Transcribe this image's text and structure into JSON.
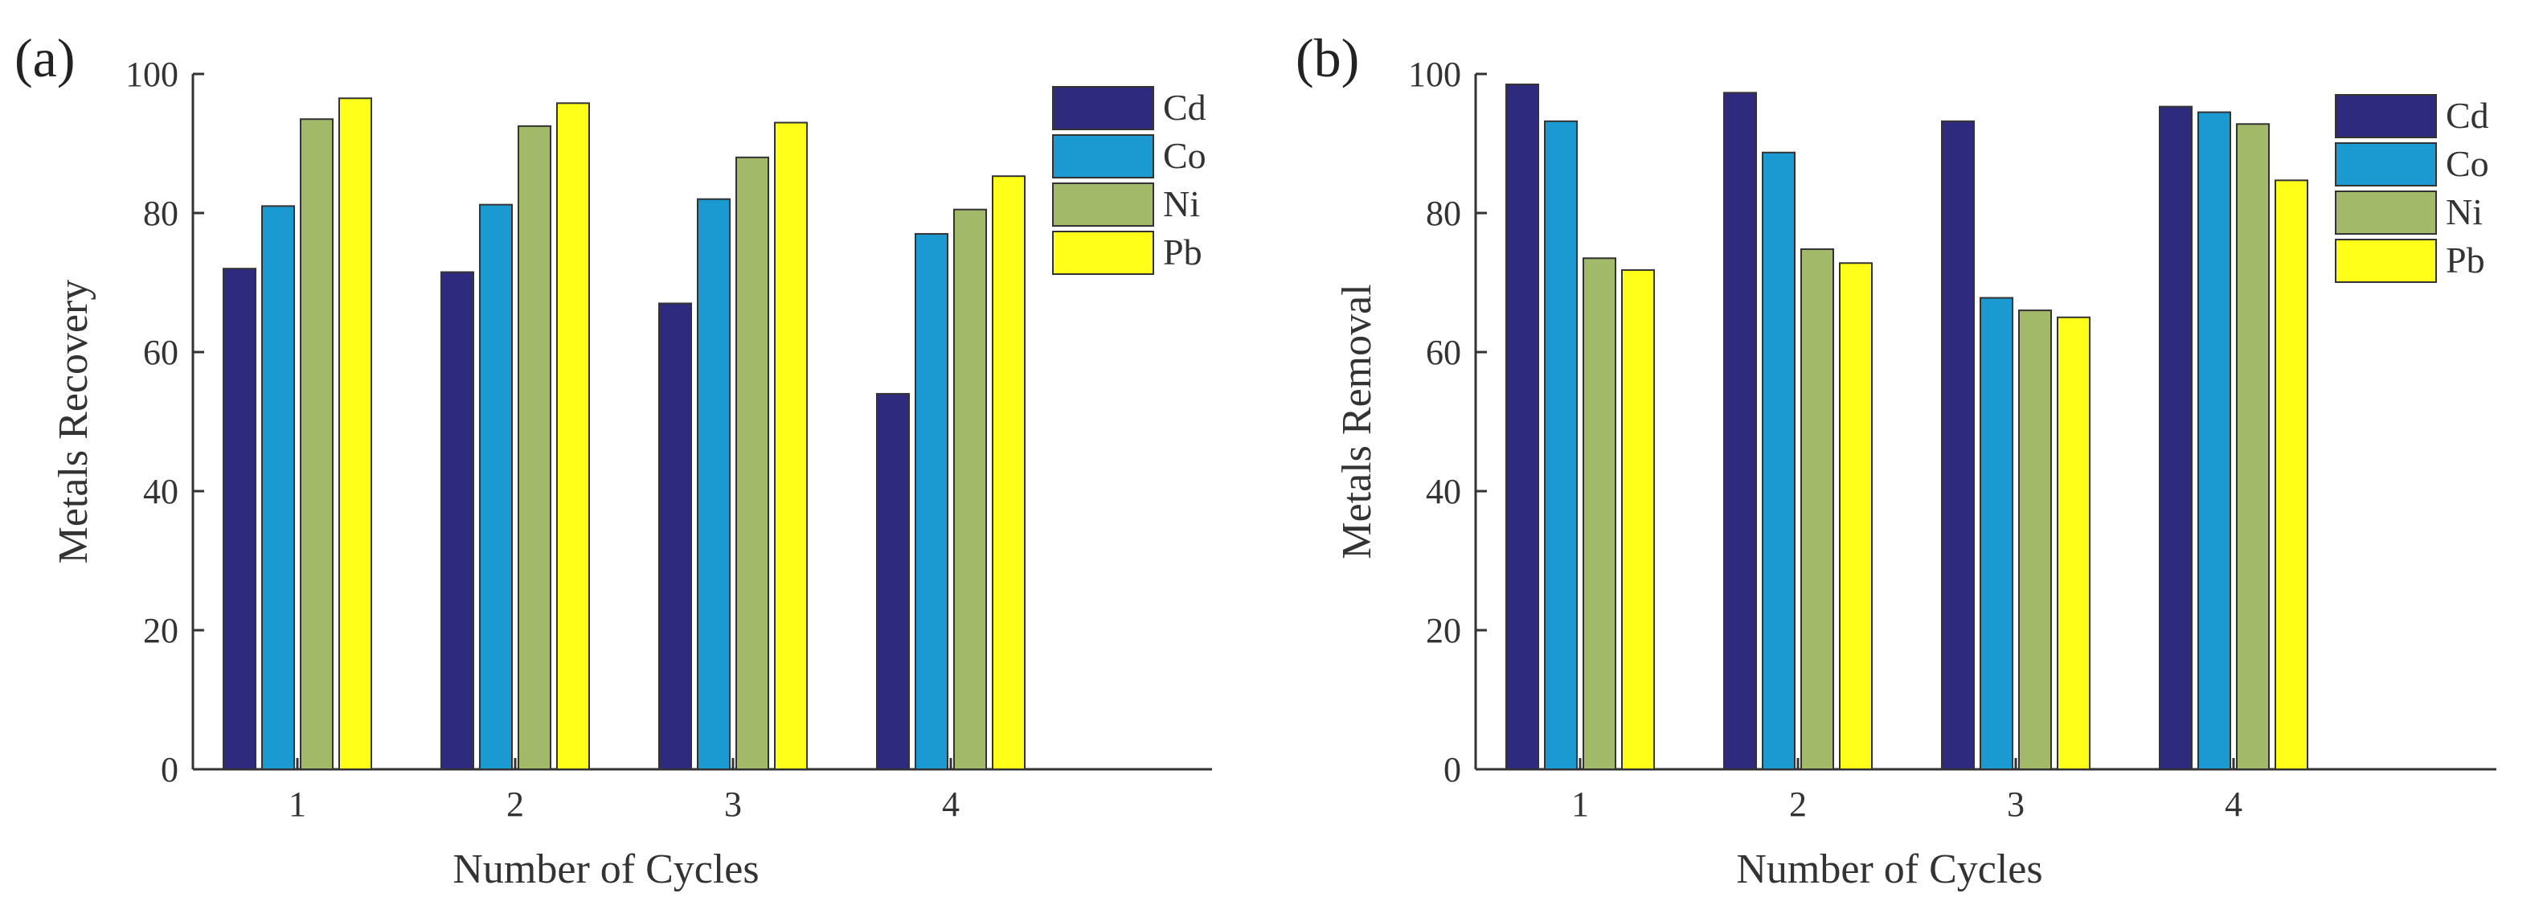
{
  "chart_data": [
    {
      "type": "bar",
      "panel_label": "(a)",
      "title": "",
      "xlabel": "Number of Cycles",
      "ylabel": "Metals Recovery",
      "categories": [
        "1",
        "2",
        "3",
        "4"
      ],
      "yticks": [
        "0",
        "20",
        "40",
        "60",
        "80",
        "100"
      ],
      "ylim": [
        0,
        100
      ],
      "series": [
        {
          "name": "Cd",
          "color": "#2e2a7e",
          "values": [
            72,
            71.5,
            67,
            54
          ]
        },
        {
          "name": "Co",
          "color": "#1b9ad1",
          "values": [
            81,
            81.2,
            82,
            77
          ]
        },
        {
          "name": "Ni",
          "color": "#a3b96a",
          "values": [
            93.5,
            92.5,
            88,
            80.5
          ]
        },
        {
          "name": "Pb",
          "color": "#ffff1a",
          "values": [
            96.5,
            95.8,
            93,
            85.3
          ]
        }
      ],
      "legend_position": "top-right",
      "grid": false
    },
    {
      "type": "bar",
      "panel_label": "(b)",
      "title": "",
      "xlabel": "Number of Cycles",
      "ylabel": "Metals Removal",
      "categories": [
        "1",
        "2",
        "3",
        "4"
      ],
      "yticks": [
        "0",
        "20",
        "40",
        "60",
        "80",
        "100"
      ],
      "ylim": [
        0,
        100
      ],
      "series": [
        {
          "name": "Cd",
          "color": "#2e2a7e",
          "values": [
            98.5,
            97.3,
            93.2,
            95.3
          ]
        },
        {
          "name": "Co",
          "color": "#1b9ad1",
          "values": [
            93.2,
            88.7,
            67.8,
            94.5
          ]
        },
        {
          "name": "Ni",
          "color": "#a3b96a",
          "values": [
            73.5,
            74.8,
            66,
            92.8
          ]
        },
        {
          "name": "Pb",
          "color": "#ffff1a",
          "values": [
            71.8,
            72.8,
            65,
            84.7
          ]
        }
      ],
      "legend_position": "top-right",
      "grid": false
    }
  ]
}
